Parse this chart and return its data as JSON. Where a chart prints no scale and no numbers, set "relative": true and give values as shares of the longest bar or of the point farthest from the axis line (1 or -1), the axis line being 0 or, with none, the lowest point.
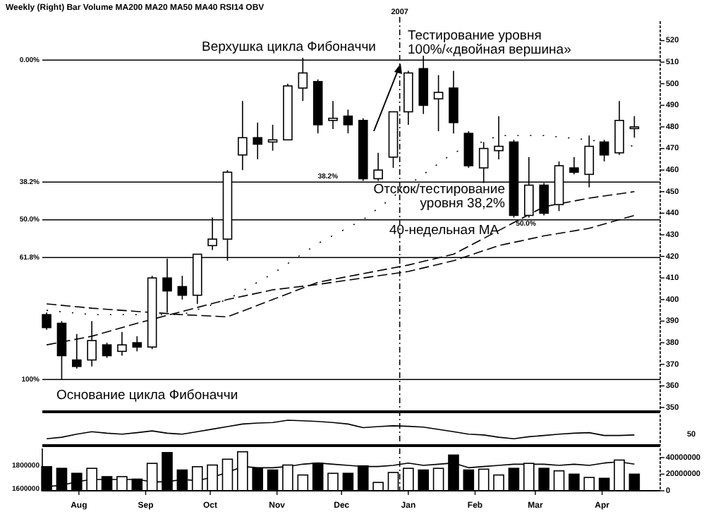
{
  "chart_data": [
    {
      "type": "candlestick",
      "title": "Weekly  (Right)  Bar  Volume  MA200  MA20  MA50  MA40  RSI14  OBV",
      "x": [
        "2006-07-17",
        "2006-07-24",
        "2006-07-31",
        "2006-08-07",
        "2006-08-14",
        "2006-08-21",
        "2006-08-28",
        "2006-09-04",
        "2006-09-11",
        "2006-09-18",
        "2006-09-25",
        "2006-10-02",
        "2006-10-09",
        "2006-10-16",
        "2006-10-23",
        "2006-10-30",
        "2006-11-06",
        "2006-11-13",
        "2006-11-20",
        "2006-11-27",
        "2006-12-04",
        "2006-12-11",
        "2006-12-18",
        "2006-12-25",
        "2007-01-01",
        "2007-01-08",
        "2007-01-15",
        "2007-01-22",
        "2007-01-29",
        "2007-02-05",
        "2007-02-12",
        "2007-02-19",
        "2007-02-26",
        "2007-03-05",
        "2007-03-12",
        "2007-03-19",
        "2007-03-26",
        "2007-04-02",
        "2007-04-09",
        "2007-04-16"
      ],
      "ohlc": [
        [
          393,
          394,
          386,
          387
        ],
        [
          389,
          390,
          363,
          374
        ],
        [
          372,
          384,
          368,
          369
        ],
        [
          372,
          390,
          369,
          381
        ],
        [
          379,
          380,
          373,
          374
        ],
        [
          376,
          385,
          374,
          379
        ],
        [
          380,
          383,
          376,
          378
        ],
        [
          378,
          411,
          377,
          410
        ],
        [
          410,
          419,
          394,
          404
        ],
        [
          406,
          411,
          400,
          402
        ],
        [
          402,
          421,
          398,
          421
        ],
        [
          425,
          438,
          423,
          428
        ],
        [
          428,
          460,
          418,
          459
        ],
        [
          467,
          492,
          460,
          475
        ],
        [
          475,
          482,
          465,
          472
        ],
        [
          473,
          481,
          469,
          474
        ],
        [
          474,
          500,
          474,
          499
        ],
        [
          498,
          512,
          492,
          505
        ],
        [
          501,
          502,
          477,
          481
        ],
        [
          483,
          492,
          479,
          484
        ],
        [
          485,
          488,
          477,
          481
        ],
        [
          483,
          484,
          455,
          456
        ],
        [
          456,
          468,
          455,
          460
        ],
        [
          466,
          487,
          461,
          487
        ],
        [
          487,
          506,
          481,
          505
        ],
        [
          507,
          513,
          486,
          490
        ],
        [
          493,
          504,
          478,
          496
        ],
        [
          498,
          506,
          477,
          482
        ],
        [
          477,
          478,
          461,
          462
        ],
        [
          461,
          473,
          454,
          470
        ],
        [
          469,
          485,
          465,
          471
        ],
        [
          473,
          474,
          438,
          439
        ],
        [
          439,
          466,
          438,
          453
        ],
        [
          453,
          454,
          439,
          440
        ],
        [
          444,
          464,
          441,
          462
        ],
        [
          461,
          466,
          458,
          459
        ],
        [
          458,
          476,
          452,
          471
        ],
        [
          473,
          474,
          464,
          467
        ],
        [
          468,
          492,
          467,
          483
        ],
        [
          480,
          485,
          475,
          480
        ]
      ],
      "series": [
        {
          "type": "line",
          "line_style": "dashed",
          "color": "#000000",
          "x": [
            "2006-07-17",
            "2006-08-07",
            "2006-08-28",
            "2006-09-18",
            "2006-10-09",
            "2006-10-30",
            "2006-11-20",
            "2006-12-11",
            "2007-01-01",
            "2007-01-22",
            "2007-02-12",
            "2007-03-05",
            "2007-03-26",
            "2007-04-16"
          ],
          "values": [
            379,
            383,
            389,
            394.5,
            400,
            404.5,
            407,
            410,
            413,
            418,
            425,
            429.5,
            433,
            439
          ]
        },
        {
          "type": "line",
          "line_style": "dashed",
          "color": "#000000",
          "x": [
            "2006-07-17",
            "2006-08-07",
            "2006-08-28",
            "2006-09-18",
            "2006-10-09",
            "2006-10-30",
            "2006-11-20",
            "2006-12-11",
            "2007-01-01",
            "2007-01-22",
            "2007-02-12",
            "2007-03-05",
            "2007-03-26",
            "2007-04-16"
          ],
          "values": [
            398,
            396,
            394.5,
            393,
            392,
            400,
            408,
            412,
            416,
            421,
            432,
            443,
            447,
            450
          ]
        },
        {
          "type": "line",
          "line_style": "dotted",
          "color": "#000000",
          "x": [
            "2006-07-17",
            "2006-08-07",
            "2006-08-28",
            "2006-09-18",
            "2006-10-09",
            "2006-10-30",
            "2006-11-20",
            "2006-12-11",
            "2007-01-01",
            "2007-01-22",
            "2007-02-12",
            "2007-03-05",
            "2007-03-26",
            "2007-04-16"
          ],
          "values": [
            395,
            393,
            393,
            393,
            400,
            412,
            426,
            437,
            453,
            468,
            476,
            476,
            474,
            471
          ]
        }
      ],
      "xlim": [
        "2006-07-15",
        "2007-04-28"
      ],
      "ylim": [
        348,
        529
      ],
      "yticks": [
        350,
        360,
        370,
        380,
        390,
        400,
        410,
        420,
        430,
        440,
        450,
        460,
        470,
        480,
        490,
        500,
        510,
        520
      ],
      "tick_labels": "y",
      "y2lim": [
        110.1,
        -12.2
      ],
      "y2ticks": [
        {
          "value": 0,
          "label": "0.00%"
        },
        {
          "value": 38.2,
          "label": "38.2%"
        },
        {
          "value": 50,
          "label": "50.0%"
        },
        {
          "value": 61.8,
          "label": "61.8%"
        },
        {
          "value": 100,
          "label": "100%"
        }
      ],
      "ref_lines": [
        {
          "axis": "y2",
          "value": 0
        },
        {
          "axis": "y2",
          "value": 38.2
        },
        {
          "axis": "y2",
          "value": 50
        },
        {
          "axis": "y2",
          "value": 61.8
        },
        {
          "axis": "y2",
          "value": 100
        },
        {
          "axis": "x",
          "value": "2006-12-28",
          "label": "2007",
          "line_style": "dashed"
        }
      ],
      "annotations": [
        "Верхушка цикла Фибоначчи",
        "Тестирование уровня\n100%/«двойная вершина»",
        "Отскок/тестирование\nуровня 38,2%",
        "40-недельная МА",
        "Основание цикла Фибоначчи",
        {
          "text": "38.2%",
          "x": "2006-11-20",
          "y": 457
        },
        {
          "text": "50.0%",
          "x": "2007-02-20",
          "y": 435
        }
      ]
    },
    {
      "type": "line",
      "relative": true,
      "color": "#000000",
      "tick_labels": false,
      "xlim": [
        "2006-07-15",
        "2007-04-28"
      ],
      "x": [
        "2006-07-17",
        "2006-07-24",
        "2006-07-31",
        "2006-08-07",
        "2006-08-14",
        "2006-08-21",
        "2006-08-28",
        "2006-09-04",
        "2006-09-11",
        "2006-09-18",
        "2006-09-25",
        "2006-10-02",
        "2006-10-09",
        "2006-10-16",
        "2006-10-23",
        "2006-10-30",
        "2006-11-06",
        "2006-11-13",
        "2006-11-20",
        "2006-11-27",
        "2006-12-04",
        "2006-12-11",
        "2006-12-18",
        "2006-12-25",
        "2007-01-01",
        "2007-01-08",
        "2007-01-15",
        "2007-01-22",
        "2007-01-29",
        "2007-02-05",
        "2007-02-12",
        "2007-02-19",
        "2007-02-26",
        "2007-03-05",
        "2007-03-12",
        "2007-03-19",
        "2007-03-26",
        "2007-04-02",
        "2007-04-09",
        "2007-04-16"
      ],
      "values": [
        0.27,
        0.33,
        0.45,
        0.55,
        0.49,
        0.45,
        0.51,
        0.58,
        0.49,
        0.45,
        0.55,
        0.65,
        0.75,
        0.85,
        0.89,
        0.91,
        1,
        0.98,
        0.95,
        0.91,
        0.85,
        0.71,
        0.75,
        0.78,
        0.76,
        0.73,
        0.64,
        0.55,
        0.45,
        0.42,
        0.33,
        0.27,
        0.35,
        0.4,
        0.45,
        0.49,
        0.51,
        0.4,
        0.4,
        0.42
      ],
      "annotations": [
        "50"
      ]
    },
    {
      "type": "bar",
      "xlim": [
        "2006-07-15",
        "2007-04-28"
      ],
      "x": [
        "2006-07-17",
        "2006-07-24",
        "2006-07-31",
        "2006-08-07",
        "2006-08-14",
        "2006-08-21",
        "2006-08-28",
        "2006-09-04",
        "2006-09-11",
        "2006-09-18",
        "2006-09-25",
        "2006-10-02",
        "2006-10-09",
        "2006-10-16",
        "2006-10-23",
        "2006-10-30",
        "2006-11-06",
        "2006-11-13",
        "2006-11-20",
        "2006-11-27",
        "2006-12-04",
        "2006-12-11",
        "2006-12-18",
        "2006-12-25",
        "2007-01-01",
        "2007-01-08",
        "2007-01-15",
        "2007-01-22",
        "2007-01-29",
        "2007-02-05",
        "2007-02-12",
        "2007-02-19",
        "2007-02-26",
        "2007-03-05",
        "2007-03-12",
        "2007-03-19",
        "2007-03-26",
        "2007-04-02",
        "2007-04-09",
        "2007-04-16"
      ],
      "xticks": [
        {
          "value": "2006-08-01",
          "label": "Aug"
        },
        {
          "value": "2006-09-01",
          "label": "Sep"
        },
        {
          "value": "2006-10-01",
          "label": "Oct"
        },
        {
          "value": "2006-11-01",
          "label": "Nov"
        },
        {
          "value": "2006-12-01",
          "label": "Dec"
        },
        {
          "value": "2007-01-01",
          "label": "Jan"
        },
        {
          "value": "2007-02-01",
          "label": "Feb"
        },
        {
          "value": "2007-03-01",
          "label": "Mar"
        },
        {
          "value": "2007-04-01",
          "label": "Apr"
        }
      ],
      "ylim": [
        0,
        51000000
      ],
      "yticks": [
        0,
        20000000,
        40000000
      ],
      "y2lim": [
        1584000,
        1944000
      ],
      "y2ticks": [
        1600000,
        1800000
      ],
      "values": [
        29000000,
        27000000,
        21000000,
        27000000,
        17000000,
        17000000,
        14000000,
        33000000,
        46000000,
        25000000,
        29000000,
        31000000,
        38000000,
        47000000,
        27000000,
        25000000,
        31000000,
        19000000,
        33000000,
        21000000,
        21000000,
        30000000,
        10000000,
        22000000,
        27000000,
        25000000,
        27000000,
        43000000,
        25000000,
        26000000,
        19000000,
        27000000,
        33000000,
        27000000,
        24000000,
        20000000,
        16000000,
        15000000,
        37000000,
        20000000
      ],
      "colors": [
        "#000000",
        "#000000",
        "#000000",
        "#ffffff",
        "#000000",
        "#ffffff",
        "#000000",
        "#ffffff",
        "#000000",
        "#000000",
        "#ffffff",
        "#ffffff",
        "#ffffff",
        "#ffffff",
        "#000000",
        "#000000",
        "#ffffff",
        "#ffffff",
        "#000000",
        "#ffffff",
        "#000000",
        "#000000",
        "#ffffff",
        "#ffffff",
        "#ffffff",
        "#000000",
        "#ffffff",
        "#000000",
        "#000000",
        "#ffffff",
        "#ffffff",
        "#000000",
        "#ffffff",
        "#000000",
        "#ffffff",
        "#000000",
        "#ffffff",
        "#000000",
        "#ffffff",
        "#000000"
      ],
      "series": [
        {
          "type": "line",
          "axis": "y2",
          "color": "#000000",
          "values": [
            1620000,
            1630000,
            1660000,
            1680000,
            1680000,
            1680000,
            1680000,
            1660000,
            1660000,
            1680000,
            1670000,
            1700000,
            1740000,
            1790000,
            1780000,
            1780000,
            1790000,
            1810000,
            1820000,
            1810000,
            1800000,
            1790000,
            1790000,
            1800000,
            1820000,
            1800000,
            1810000,
            1820000,
            1780000,
            1790000,
            1800000,
            1810000,
            1810000,
            1810000,
            1800000,
            1810000,
            1800000,
            1820000,
            1830000,
            1810000
          ]
        }
      ]
    }
  ]
}
